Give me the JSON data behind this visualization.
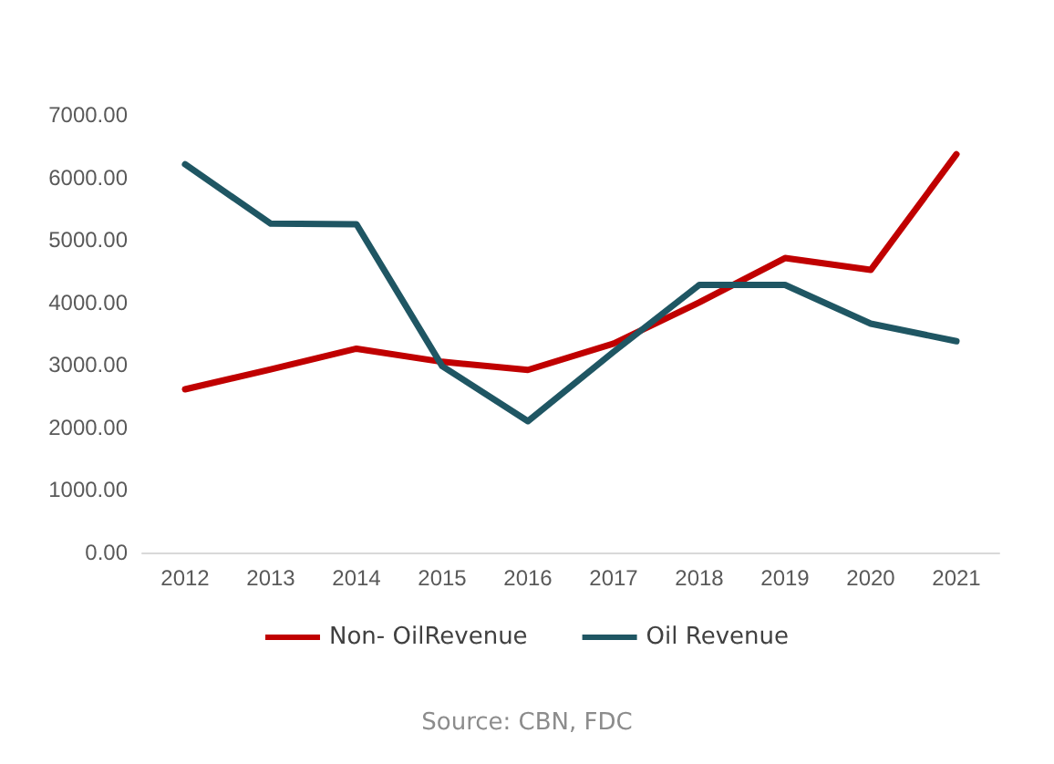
{
  "chart_data": {
    "type": "line",
    "categories": [
      "2012",
      "2013",
      "2014",
      "2015",
      "2016",
      "2017",
      "2018",
      "2019",
      "2020",
      "2021"
    ],
    "series": [
      {
        "name": "Non- OilRevenue",
        "color": "#c00000",
        "values": [
          2610,
          2930,
          3260,
          3050,
          2920,
          3340,
          4000,
          4710,
          4520,
          6370
        ]
      },
      {
        "name": "Oil Revenue",
        "color": "#1f5663",
        "values": [
          6210,
          5260,
          5250,
          2980,
          2100,
          3210,
          4280,
          4280,
          3660,
          3380
        ]
      }
    ],
    "ylim": [
      0,
      7000
    ],
    "yticks": [
      {
        "value": 0,
        "label": "0.00"
      },
      {
        "value": 1000,
        "label": "1000.00"
      },
      {
        "value": 2000,
        "label": "2000.00"
      },
      {
        "value": 3000,
        "label": "3000.00"
      },
      {
        "value": 4000,
        "label": "4000.00"
      },
      {
        "value": 5000,
        "label": "5000.00"
      },
      {
        "value": 6000,
        "label": "6000.00"
      },
      {
        "value": 7000,
        "label": "7000.00"
      }
    ],
    "grid": false,
    "legend": "bottom",
    "marker": "none",
    "line_style": "solid",
    "annotations": [
      "Source: CBN, FDC"
    ]
  }
}
